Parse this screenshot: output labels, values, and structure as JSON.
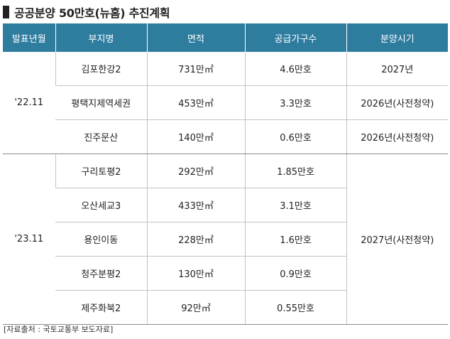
{
  "title": "공공분양 50만호(뉴홈) 추진계획",
  "columns": [
    "발표년월",
    "부지명",
    "면적",
    "공급가구수",
    "분양시기"
  ],
  "groups": [
    {
      "announce": "'22.11",
      "rows": [
        {
          "site": "김포한강2",
          "area": "731만㎡",
          "units": "4.6만호",
          "sale": "2027년"
        },
        {
          "site": "평택지제역세권",
          "area": "453만㎡",
          "units": "3.3만호",
          "sale": "2026년(사전청약)"
        },
        {
          "site": "진주문산",
          "area": "140만㎡",
          "units": "0.6만호",
          "sale": "2026년(사전청약)"
        }
      ]
    },
    {
      "announce": "'23.11",
      "sale": "2027년(사전청약)",
      "rows": [
        {
          "site": "구리토평2",
          "area": "292만㎡",
          "units": "1.85만호"
        },
        {
          "site": "오산세교3",
          "area": "433만㎡",
          "units": "3.1만호"
        },
        {
          "site": "용인이동",
          "area": "228만㎡",
          "units": "1.6만호"
        },
        {
          "site": "청주분평2",
          "area": "130만㎡",
          "units": "0.9만호"
        },
        {
          "site": "제주화북2",
          "area": "92만㎡",
          "units": "0.55만호"
        }
      ]
    }
  ],
  "source": "[자료출처 : 국토교통부 보도자료]"
}
